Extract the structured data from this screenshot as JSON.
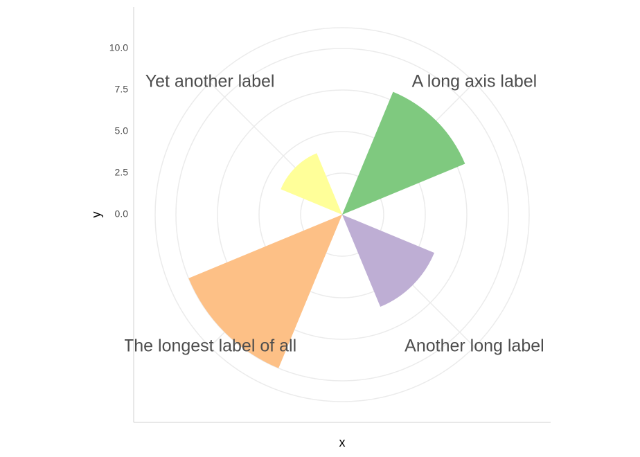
{
  "chart_data": {
    "type": "polar-bar",
    "categories": [
      "A long axis label",
      "Another long label",
      "The longest label of all",
      "Yet another label"
    ],
    "values": [
      8,
      6,
      10,
      4
    ],
    "colors": [
      "#7fc97f",
      "#beaed4",
      "#fdc086",
      "#ffff99"
    ],
    "ylim": [
      0,
      11.25
    ],
    "yticks": [
      {
        "value": 0,
        "label": "0.0"
      },
      2.5,
      {
        "value": 5,
        "label": "5.0"
      },
      {
        "value": 7.5,
        "label": "7.5"
      },
      {
        "value": 10,
        "label": "10.0"
      }
    ],
    "xlabel": "x",
    "ylabel": "y",
    "grid": true
  }
}
